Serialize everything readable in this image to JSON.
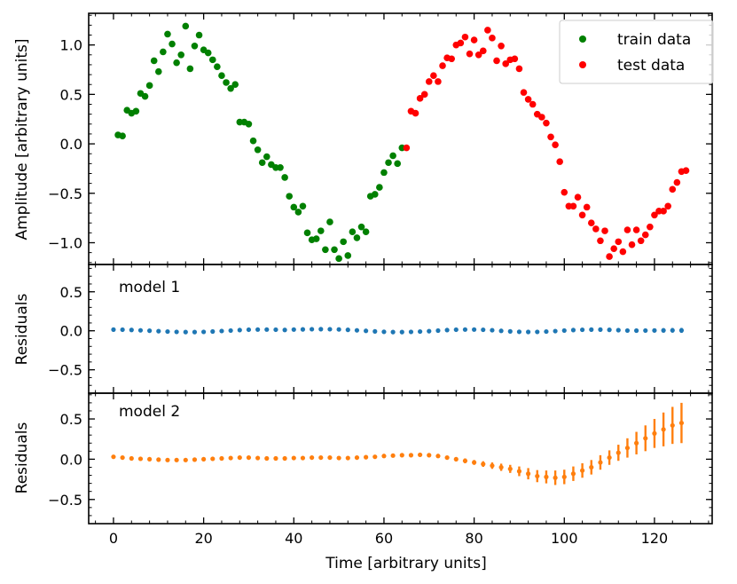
{
  "chart_data": [
    {
      "panel": "top",
      "type": "scatter",
      "title": "",
      "ylabel": "Amplitude [arbitrary units]",
      "xlim": [
        -5.5,
        132.8
      ],
      "ylim": [
        -1.22,
        1.32
      ],
      "yticks": [
        -1.0,
        -0.5,
        0.0,
        0.5,
        1.0
      ],
      "ytick_labels": [
        "−1.0",
        "−0.5",
        "0.0",
        "0.5",
        "1.0"
      ],
      "legend_position": "top-right",
      "series": [
        {
          "name": "train data",
          "color": "#008000",
          "x": [
            1,
            2,
            3,
            4,
            5,
            6,
            7,
            8,
            9,
            10,
            11,
            12,
            13,
            14,
            15,
            16,
            17,
            18,
            19,
            20,
            21,
            22,
            23,
            24,
            25,
            26,
            27,
            28,
            29,
            30,
            31,
            32,
            33,
            34,
            35,
            36,
            37,
            38,
            39,
            40,
            41,
            42,
            43,
            44,
            45,
            46,
            47,
            48,
            49,
            50,
            51,
            52,
            53,
            54,
            55,
            56,
            57,
            58,
            59,
            60,
            61,
            62,
            63,
            64
          ],
          "y": [
            0.09,
            0.08,
            0.34,
            0.31,
            0.33,
            0.51,
            0.48,
            0.59,
            0.84,
            0.73,
            0.93,
            1.11,
            1.01,
            0.82,
            0.9,
            1.19,
            0.76,
            0.99,
            1.1,
            0.95,
            0.92,
            0.85,
            0.78,
            0.69,
            0.62,
            0.56,
            0.6,
            0.22,
            0.22,
            0.2,
            0.03,
            -0.06,
            -0.19,
            -0.13,
            -0.21,
            -0.24,
            -0.24,
            -0.34,
            -0.53,
            -0.64,
            -0.69,
            -0.63,
            -0.9,
            -0.97,
            -0.96,
            -0.88,
            -1.07,
            -0.79,
            -1.07,
            -1.16,
            -0.99,
            -1.13,
            -0.89,
            -0.95,
            -0.84,
            -0.89,
            -0.53,
            -0.51,
            -0.44,
            -0.29,
            -0.19,
            -0.12,
            -0.2,
            -0.04
          ]
        },
        {
          "name": "test data",
          "color": "#ff0000",
          "x": [
            65,
            66,
            67,
            68,
            69,
            70,
            71,
            72,
            73,
            74,
            75,
            76,
            77,
            78,
            79,
            80,
            81,
            82,
            83,
            84,
            85,
            86,
            87,
            88,
            89,
            90,
            91,
            92,
            93,
            94,
            95,
            96,
            97,
            98,
            99,
            100,
            101,
            102,
            103,
            104,
            105,
            106,
            107,
            108,
            109,
            110,
            111,
            112,
            113,
            114,
            115,
            116,
            117,
            118,
            119,
            120,
            121,
            122,
            123,
            124,
            125,
            126,
            127
          ],
          "y": [
            -0.04,
            0.33,
            0.31,
            0.46,
            0.5,
            0.63,
            0.69,
            0.63,
            0.79,
            0.87,
            0.86,
            1.0,
            1.02,
            1.08,
            0.91,
            1.05,
            0.9,
            0.94,
            1.15,
            1.07,
            0.84,
            0.99,
            0.81,
            0.85,
            0.86,
            0.76,
            0.52,
            0.45,
            0.4,
            0.3,
            0.27,
            0.21,
            0.07,
            -0.01,
            -0.18,
            -0.49,
            -0.63,
            -0.63,
            -0.54,
            -0.72,
            -0.64,
            -0.8,
            -0.86,
            -0.98,
            -0.88,
            -1.14,
            -1.06,
            -0.99,
            -1.09,
            -0.87,
            -1.02,
            -0.87,
            -0.98,
            -0.92,
            -0.84,
            -0.72,
            -0.68,
            -0.68,
            -0.63,
            -0.46,
            -0.39,
            -0.28,
            -0.27
          ]
        }
      ]
    },
    {
      "panel": "middle",
      "type": "errorbar",
      "label": "model 1",
      "ylabel": "Residuals",
      "ylim": [
        -0.8,
        0.85
      ],
      "yticks": [
        -0.5,
        0.0,
        0.5
      ],
      "ytick_labels": [
        "−0.5",
        "0.0",
        "0.5"
      ],
      "color": "#1f77b4",
      "x": [
        0,
        2,
        4,
        6,
        8,
        10,
        12,
        14,
        16,
        18,
        20,
        22,
        24,
        26,
        28,
        30,
        32,
        34,
        36,
        38,
        40,
        42,
        44,
        46,
        48,
        50,
        52,
        54,
        56,
        58,
        60,
        62,
        64,
        66,
        68,
        70,
        72,
        74,
        76,
        78,
        80,
        82,
        84,
        86,
        88,
        90,
        92,
        94,
        96,
        98,
        100,
        102,
        104,
        106,
        108,
        110,
        112,
        114,
        116,
        118,
        120,
        122,
        124,
        126
      ],
      "y": [
        0.015,
        0.014,
        0.011,
        0.006,
        0.001,
        -0.005,
        -0.01,
        -0.014,
        -0.016,
        -0.016,
        -0.014,
        -0.009,
        -0.003,
        0.003,
        0.009,
        0.014,
        0.016,
        0.016,
        0.014,
        0.011,
        0.016,
        0.018,
        0.02,
        0.021,
        0.02,
        0.017,
        0.012,
        0.006,
        -0.001,
        -0.008,
        -0.013,
        -0.016,
        -0.016,
        -0.014,
        -0.01,
        -0.005,
        0.002,
        0.009,
        0.014,
        0.016,
        0.016,
        0.013,
        0.007,
        -0.001,
        -0.008,
        -0.013,
        -0.015,
        -0.014,
        -0.01,
        -0.004,
        0.003,
        0.009,
        0.013,
        0.015,
        0.015,
        0.012,
        0.008,
        0.003,
        0.002,
        0.003,
        0.004,
        0.005,
        0.006,
        0.005
      ],
      "yerr": [
        0.008,
        0.008,
        0.008,
        0.008,
        0.008,
        0.008,
        0.008,
        0.008,
        0.008,
        0.008,
        0.008,
        0.008,
        0.008,
        0.008,
        0.008,
        0.008,
        0.008,
        0.008,
        0.008,
        0.008,
        0.008,
        0.008,
        0.008,
        0.008,
        0.008,
        0.008,
        0.008,
        0.008,
        0.008,
        0.008,
        0.008,
        0.008,
        0.01,
        0.01,
        0.01,
        0.01,
        0.01,
        0.01,
        0.01,
        0.01,
        0.01,
        0.012,
        0.012,
        0.012,
        0.012,
        0.012,
        0.012,
        0.014,
        0.014,
        0.014,
        0.014,
        0.016,
        0.016,
        0.016,
        0.018,
        0.018,
        0.02,
        0.022,
        0.022,
        0.024,
        0.025,
        0.028,
        0.03,
        0.032
      ]
    },
    {
      "panel": "bottom",
      "type": "errorbar",
      "label": "model 2",
      "ylabel": "Residuals",
      "xlabel": "Time [arbitrary units]",
      "ylim": [
        -0.8,
        0.82
      ],
      "yticks": [
        -0.5,
        0.0,
        0.5
      ],
      "ytick_labels": [
        "−0.5",
        "0.0",
        "0.5"
      ],
      "xticks": [
        0,
        20,
        40,
        60,
        80,
        100,
        120
      ],
      "xtick_labels": [
        "0",
        "20",
        "40",
        "60",
        "80",
        "100",
        "120"
      ],
      "color": "#ff7f0e",
      "x": [
        0,
        2,
        4,
        6,
        8,
        10,
        12,
        14,
        16,
        18,
        20,
        22,
        24,
        26,
        28,
        30,
        32,
        34,
        36,
        38,
        40,
        42,
        44,
        46,
        48,
        50,
        52,
        54,
        56,
        58,
        60,
        62,
        64,
        66,
        68,
        70,
        72,
        74,
        76,
        78,
        80,
        82,
        84,
        86,
        88,
        90,
        92,
        94,
        96,
        98,
        100,
        102,
        104,
        106,
        108,
        110,
        112,
        114,
        116,
        118,
        120,
        122,
        124,
        126
      ],
      "y": [
        0.03,
        0.02,
        0.01,
        0.005,
        0.0,
        -0.005,
        -0.01,
        -0.01,
        -0.01,
        -0.005,
        0.0,
        0.005,
        0.01,
        0.015,
        0.02,
        0.02,
        0.015,
        0.01,
        0.01,
        0.01,
        0.015,
        0.015,
        0.02,
        0.02,
        0.02,
        0.015,
        0.015,
        0.02,
        0.025,
        0.03,
        0.04,
        0.045,
        0.05,
        0.05,
        0.055,
        0.05,
        0.04,
        0.02,
        0.0,
        -0.02,
        -0.04,
        -0.06,
        -0.08,
        -0.1,
        -0.12,
        -0.15,
        -0.18,
        -0.21,
        -0.22,
        -0.23,
        -0.22,
        -0.18,
        -0.14,
        -0.1,
        -0.04,
        0.02,
        0.08,
        0.14,
        0.2,
        0.26,
        0.32,
        0.37,
        0.42,
        0.45
      ],
      "yerr": [
        0.01,
        0.01,
        0.01,
        0.01,
        0.01,
        0.01,
        0.01,
        0.01,
        0.01,
        0.01,
        0.01,
        0.01,
        0.01,
        0.01,
        0.01,
        0.01,
        0.01,
        0.01,
        0.01,
        0.01,
        0.01,
        0.01,
        0.01,
        0.01,
        0.01,
        0.01,
        0.01,
        0.01,
        0.01,
        0.01,
        0.01,
        0.01,
        0.015,
        0.015,
        0.015,
        0.02,
        0.02,
        0.02,
        0.025,
        0.03,
        0.03,
        0.035,
        0.04,
        0.045,
        0.05,
        0.06,
        0.07,
        0.075,
        0.08,
        0.09,
        0.09,
        0.09,
        0.09,
        0.09,
        0.09,
        0.09,
        0.1,
        0.12,
        0.14,
        0.16,
        0.18,
        0.21,
        0.23,
        0.25
      ]
    }
  ]
}
